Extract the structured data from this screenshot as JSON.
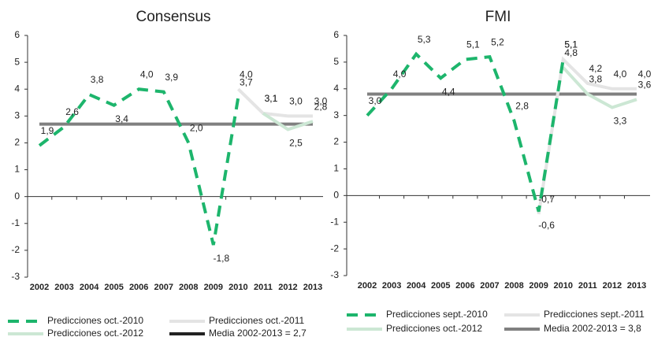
{
  "chart_data": [
    {
      "type": "line",
      "title": "Consensus",
      "categories": [
        "2002",
        "2003",
        "2004",
        "2005",
        "2006",
        "2007",
        "2008",
        "2009",
        "2010",
        "2011",
        "2012",
        "2013"
      ],
      "ylim": [
        -3,
        6
      ],
      "yticks": [
        -3,
        -2,
        -1,
        0,
        1,
        2,
        3,
        4,
        5,
        6
      ],
      "series": [
        {
          "name": "Predicciones oct.-2010",
          "color": "#1db56c",
          "dash": true,
          "values": [
            1.9,
            2.6,
            3.8,
            3.4,
            4.0,
            3.9,
            2.0,
            -1.8,
            3.7,
            null,
            null,
            null
          ],
          "value_labels": [
            "1,9",
            "2,6",
            "3,8",
            "3,4",
            "4,0",
            "3,9",
            "2,0",
            "-1,8",
            "3,7",
            null,
            null,
            null
          ]
        },
        {
          "name": "Predicciones oct.-2011",
          "color": "#e4e4e4",
          "values": [
            null,
            null,
            null,
            null,
            null,
            null,
            null,
            null,
            4.0,
            3.1,
            3.0,
            3.0
          ],
          "value_labels": [
            null,
            null,
            null,
            null,
            null,
            null,
            null,
            null,
            "4,0",
            "3,1",
            "3,0",
            "3,0"
          ]
        },
        {
          "name": "Predicciones oct.-2012",
          "color": "#cce7d4",
          "values": [
            null,
            null,
            null,
            null,
            null,
            null,
            null,
            null,
            null,
            3.1,
            2.5,
            2.8
          ],
          "value_labels": [
            null,
            null,
            null,
            null,
            null,
            null,
            null,
            null,
            null,
            "3,1",
            "2,5",
            "2,8"
          ]
        },
        {
          "name": "Media 2002-2013 = 2,7",
          "color": "#808080",
          "values": [
            2.7,
            2.7,
            2.7,
            2.7,
            2.7,
            2.7,
            2.7,
            2.7,
            2.7,
            2.7,
            2.7,
            2.7
          ]
        }
      ]
    },
    {
      "type": "line",
      "title": "FMI",
      "categories": [
        "2002",
        "2003",
        "2004",
        "2005",
        "2006",
        "2007",
        "2008",
        "2009",
        "2010",
        "2011",
        "2012",
        "2013"
      ],
      "ylim": [
        -3,
        6
      ],
      "yticks": [
        -3,
        -2,
        -1,
        0,
        1,
        2,
        3,
        4,
        5,
        6
      ],
      "series": [
        {
          "name": "Predicciones sept.-2010",
          "color": "#1db56c",
          "dash": true,
          "values": [
            3.0,
            4.0,
            5.3,
            4.4,
            5.1,
            5.2,
            2.8,
            -0.6,
            5.1,
            null,
            null,
            null
          ],
          "value_labels": [
            "3,0",
            "4,0",
            "5,3",
            "4,4",
            "5,1",
            "5,2",
            "2,8",
            "-0,6",
            "5,1",
            null,
            null,
            null
          ]
        },
        {
          "name": "Predicciones sept.-2011",
          "color": "#e4e4e4",
          "values": [
            null,
            null,
            null,
            null,
            null,
            null,
            null,
            -0.7,
            5.1,
            4.2,
            4.0,
            4.0
          ],
          "value_labels": [
            null,
            null,
            null,
            null,
            null,
            null,
            null,
            "-0,7",
            "5,1",
            "4,2",
            "4,0",
            "4,0"
          ]
        },
        {
          "name": "Predicciones oct.-2012",
          "color": "#cce7d4",
          "values": [
            null,
            null,
            null,
            null,
            null,
            null,
            null,
            null,
            4.8,
            3.8,
            3.3,
            3.6
          ],
          "value_labels": [
            null,
            null,
            null,
            null,
            null,
            null,
            null,
            null,
            "4,8",
            "3,8",
            "3,3",
            "3,6"
          ]
        },
        {
          "name": "Media 2002-2013 = 3,8",
          "color": "#808080",
          "values": [
            3.8,
            3.8,
            3.8,
            3.8,
            3.8,
            3.8,
            3.8,
            3.8,
            3.8,
            3.8,
            3.8,
            3.8
          ]
        }
      ]
    }
  ]
}
